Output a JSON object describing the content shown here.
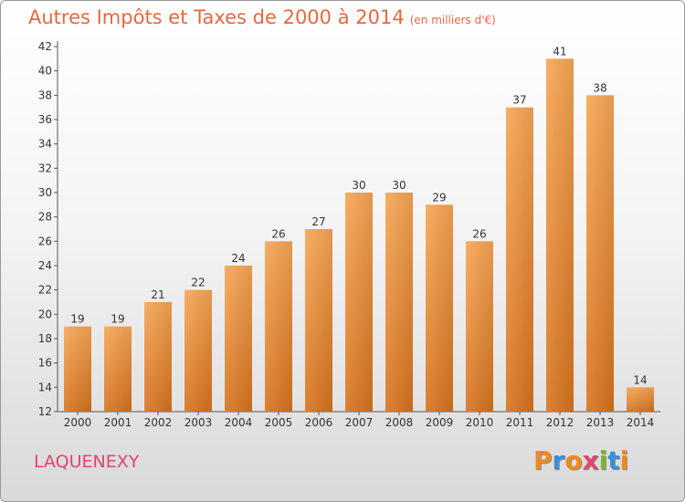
{
  "page": {
    "title": "Autres Impôts et Taxes de 2000 à 2014",
    "title_unit": "(en milliers d'€)",
    "commune": "LAQUENEXY"
  },
  "logo": {
    "letters": [
      "P",
      "r",
      "o",
      "x",
      "i",
      "t",
      "i"
    ],
    "colors": [
      "#f08a1c",
      "#3a8fd8",
      "#f08a1c",
      "#e0456e",
      "#7ab82e",
      "#3a8fd8",
      "#f08a1c"
    ]
  },
  "chart_data": {
    "type": "bar",
    "categories": [
      "2000",
      "2001",
      "2002",
      "2003",
      "2004",
      "2005",
      "2006",
      "2007",
      "2008",
      "2009",
      "2010",
      "2011",
      "2012",
      "2013",
      "2014"
    ],
    "values": [
      19,
      19,
      21,
      22,
      24,
      26,
      27,
      30,
      30,
      29,
      26,
      37,
      41,
      38,
      14
    ],
    "title": "Autres Impôts et Taxes de 2000 à 2014",
    "xlabel": "",
    "ylabel": "",
    "ylim": [
      12,
      42
    ],
    "yticks": [
      12,
      14,
      16,
      18,
      20,
      22,
      24,
      26,
      28,
      30,
      32,
      34,
      36,
      38,
      40,
      42
    ],
    "grid": false,
    "bar_color": "#f0963c",
    "data_labels": true
  }
}
